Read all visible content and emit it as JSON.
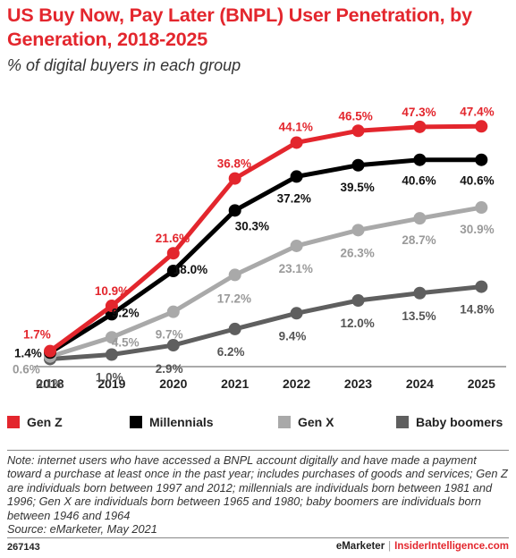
{
  "title": "US Buy Now, Pay Later (BNPL) User Penetration, by Generation, 2018-2025",
  "subtitle": "% of digital buyers in each group",
  "legend": {
    "genz": "Gen Z",
    "millennials": "Millennials",
    "genx": "Gen X",
    "boomers": "Baby boomers"
  },
  "colors": {
    "genz": "#e3262d",
    "millennials": "#000000",
    "genx": "#a9a9a9",
    "boomers": "#5f5f5f",
    "title": "#e3262d"
  },
  "note": "Note: internet users who have accessed a BNPL account digitally and have made a payment toward a purchase at least once in the past year; includes purchases of goods and services; Gen Z are individuals born between 1997 and 2012; millennials are individuals born between 1981 and 1996; Gen X are individuals born between 1965 and 1980; baby boomers are individuals born between 1946 and 1964",
  "source": "Source: eMarketer, May 2021",
  "footer": {
    "chart_id": "267143",
    "brand": "eMarketer",
    "separator": "|",
    "site": "InsiderIntelligence.com"
  },
  "chart_data": {
    "type": "line",
    "title": "US Buy Now, Pay Later (BNPL) User Penetration, by Generation, 2018-2025",
    "subtitle": "% of digital buyers in each group",
    "xlabel": "",
    "ylabel": "",
    "x": [
      "2018",
      "2019",
      "2020",
      "2021",
      "2022",
      "2023",
      "2024",
      "2025"
    ],
    "ylim": [
      0,
      50
    ],
    "grid": false,
    "legend_position": "bottom",
    "series": [
      {
        "name": "Gen Z",
        "key": "genz",
        "values": [
          1.7,
          10.9,
          21.6,
          36.8,
          44.1,
          46.5,
          47.3,
          47.4
        ],
        "labels": [
          "1.7%",
          "10.9%",
          "21.6%",
          "36.8%",
          "44.1%",
          "46.5%",
          "47.3%",
          "47.4%"
        ]
      },
      {
        "name": "Millennials",
        "key": "millennials",
        "values": [
          1.4,
          9.2,
          18.0,
          30.3,
          37.2,
          39.5,
          40.6,
          40.6
        ],
        "labels": [
          "1.4%",
          "9.2%",
          "18.0%",
          "30.3%",
          "37.2%",
          "39.5%",
          "40.6%",
          "40.6%"
        ]
      },
      {
        "name": "Gen X",
        "key": "genx",
        "values": [
          0.6,
          4.5,
          9.7,
          17.2,
          23.1,
          26.3,
          28.7,
          30.9
        ],
        "labels": [
          "0.6%",
          "4.5%",
          "9.7%",
          "17.2%",
          "23.1%",
          "26.3%",
          "28.7%",
          "30.9%"
        ]
      },
      {
        "name": "Baby boomers",
        "key": "boomers",
        "values": [
          0.1,
          1.0,
          2.9,
          6.2,
          9.4,
          12.0,
          13.5,
          14.8
        ],
        "labels": [
          "0.1%",
          "1.0%",
          "2.9%",
          "6.2%",
          "9.4%",
          "12.0%",
          "13.5%",
          "14.8%"
        ]
      }
    ]
  }
}
